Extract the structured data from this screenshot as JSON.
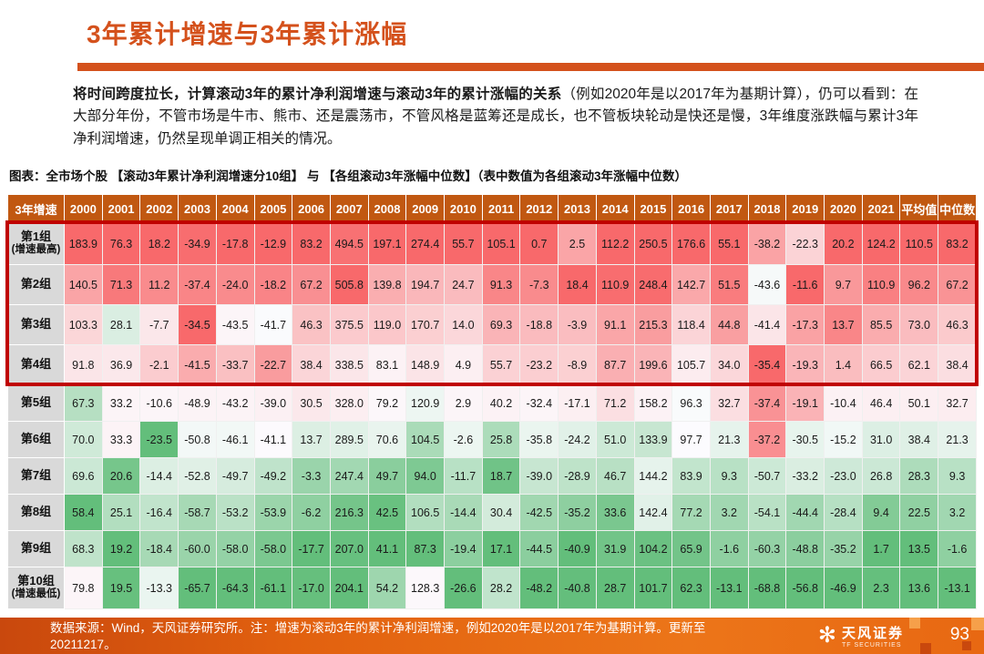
{
  "slide": {
    "title": "3年累计增速与3年累计涨幅",
    "page_number": "93"
  },
  "intro": {
    "lead": "将时间跨度拉长，计算滚动3年的累计净利润增速与滚动3年的累计涨幅的关系",
    "rest": "（例如2020年是以2017年为基期计算），仍可以看到：在大部分年份，不管市场是牛市、熊市、还是震荡市，不管风格是蓝筹还是成长，也不管板块轮动是快还是慢，3年维度涨跌幅与累计3年净利润增速，仍然呈现单调正相关的情况。"
  },
  "caption": "图表：全市场个股 【滚动3年累计净利润增速分10组】 与 【各组滚动3年涨幅中位数】（表中数值为各组滚动3年涨幅中位数）",
  "footer": {
    "source_note": "数据来源：Wind，天风证券研究所。注：增速为滚动3年的累计净利润增速，例如2020年是以2017年为基期计算。更新至20211217。",
    "logo_cn": "天风证券",
    "logo_en": "TF SECURITIES"
  },
  "chart_data": {
    "type": "heatmap",
    "title": "全市场个股 滚动3年累计净利润增速分10组 与 各组滚动3年涨幅中位数",
    "corner_header": "3年增速",
    "columns": [
      "2000",
      "2001",
      "2002",
      "2003",
      "2004",
      "2005",
      "2006",
      "2007",
      "2008",
      "2009",
      "2010",
      "2011",
      "2012",
      "2013",
      "2014",
      "2015",
      "2016",
      "2017",
      "2018",
      "2019",
      "2020",
      "2021",
      "平均值",
      "中位数"
    ],
    "rows": [
      {
        "label": "第1组",
        "sublabel": "(增速最高)",
        "values": [
          183.9,
          76.3,
          18.2,
          -34.9,
          -17.8,
          -12.9,
          83.2,
          494.5,
          197.1,
          274.4,
          55.7,
          105.1,
          0.7,
          2.5,
          112.2,
          250.5,
          176.6,
          55.1,
          -38.2,
          -22.3,
          20.2,
          124.2,
          110.5,
          83.2
        ]
      },
      {
        "label": "第2组",
        "sublabel": "",
        "values": [
          140.5,
          71.3,
          11.2,
          -37.4,
          -24.0,
          -18.2,
          67.2,
          505.8,
          139.8,
          194.7,
          24.7,
          91.3,
          -7.3,
          18.4,
          110.9,
          248.4,
          142.7,
          51.5,
          -43.6,
          -11.6,
          9.7,
          110.9,
          96.2,
          67.2
        ]
      },
      {
        "label": "第3组",
        "sublabel": "",
        "values": [
          103.3,
          28.1,
          -7.7,
          -34.5,
          -43.5,
          -41.7,
          46.3,
          375.5,
          119.0,
          170.7,
          14.0,
          69.3,
          -18.8,
          -3.9,
          91.1,
          215.3,
          118.4,
          44.8,
          -41.4,
          -17.3,
          13.7,
          85.5,
          73.0,
          46.3
        ]
      },
      {
        "label": "第4组",
        "sublabel": "",
        "values": [
          91.8,
          36.9,
          -2.1,
          -41.5,
          -33.7,
          -22.7,
          38.4,
          338.5,
          83.1,
          148.9,
          4.9,
          55.7,
          -23.2,
          -8.9,
          87.7,
          199.6,
          105.7,
          34.0,
          -35.4,
          -19.3,
          1.4,
          66.5,
          62.1,
          38.4
        ]
      },
      {
        "label": "第5组",
        "sublabel": "",
        "values": [
          67.3,
          33.2,
          -10.6,
          -48.9,
          -43.2,
          -39.0,
          30.5,
          328.0,
          79.2,
          120.9,
          2.9,
          40.2,
          -32.4,
          -17.1,
          71.2,
          158.2,
          96.3,
          32.7,
          -37.4,
          -19.1,
          -10.4,
          46.4,
          50.1,
          32.7
        ]
      },
      {
        "label": "第6组",
        "sublabel": "",
        "values": [
          70.0,
          33.3,
          -23.5,
          -50.8,
          -46.1,
          -41.1,
          13.7,
          289.5,
          70.6,
          104.5,
          -2.6,
          25.8,
          -35.8,
          -24.2,
          51.0,
          133.9,
          97.7,
          21.3,
          -37.2,
          -30.5,
          -15.2,
          31.0,
          38.4,
          21.3
        ]
      },
      {
        "label": "第7组",
        "sublabel": "",
        "values": [
          69.6,
          20.6,
          -14.4,
          -52.8,
          -49.7,
          -49.2,
          -3.3,
          247.4,
          49.7,
          94.0,
          -11.7,
          18.7,
          -39.0,
          -28.9,
          46.7,
          144.2,
          83.9,
          9.3,
          -50.7,
          -33.2,
          -23.0,
          26.8,
          28.3,
          9.3
        ]
      },
      {
        "label": "第8组",
        "sublabel": "",
        "values": [
          58.4,
          25.1,
          -16.4,
          -58.7,
          -53.2,
          -53.9,
          -6.2,
          216.3,
          42.5,
          106.5,
          -14.4,
          30.4,
          -42.5,
          -35.2,
          33.6,
          142.4,
          77.2,
          3.2,
          -54.1,
          -44.4,
          -28.4,
          9.4,
          22.5,
          3.2
        ]
      },
      {
        "label": "第9组",
        "sublabel": "",
        "values": [
          68.3,
          19.2,
          -18.4,
          -60.0,
          -58.0,
          -58.0,
          -17.7,
          207.0,
          41.1,
          87.3,
          -19.4,
          17.1,
          -44.5,
          -40.9,
          31.9,
          104.2,
          65.9,
          -1.6,
          -60.3,
          -48.8,
          -35.2,
          1.7,
          13.5,
          -1.6
        ]
      },
      {
        "label": "第10组",
        "sublabel": "(增速最低)",
        "values": [
          79.8,
          19.5,
          -13.3,
          -65.7,
          -64.3,
          -61.1,
          -17.0,
          204.1,
          54.2,
          128.3,
          -26.6,
          28.2,
          -48.2,
          -40.8,
          28.7,
          101.7,
          62.3,
          -13.1,
          -68.8,
          -56.8,
          -46.9,
          2.3,
          13.6,
          -13.1
        ]
      }
    ],
    "highlight": {
      "rows": [
        0,
        1,
        2,
        3
      ],
      "border_color": "#C00000",
      "meaning": "前4组（增速较高组）红框标注"
    },
    "colorscale": {
      "scope": "per-column",
      "min_color": "#63BE7B",
      "mid_color": "#FCFCFF",
      "max_color": "#F8696B",
      "midpoint": "median"
    },
    "layout": {
      "header_bg": "#C15811",
      "label_bg": "#D9D9D9",
      "accent": "#D4511C"
    }
  }
}
